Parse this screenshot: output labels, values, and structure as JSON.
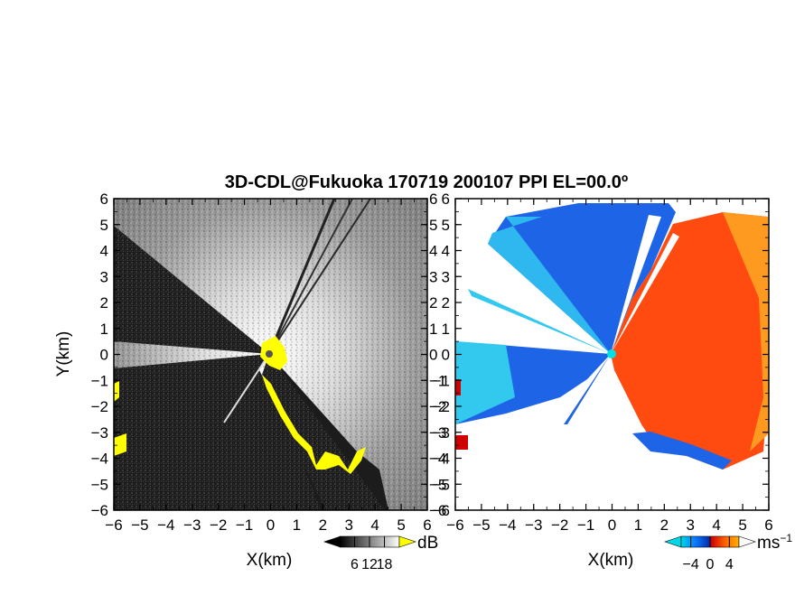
{
  "chart_data": [
    {
      "type": "heatmap",
      "panel": "reflectivity",
      "title": "3D-CDL@Fukuoka 170719 200107 PPI EL=00.0º",
      "xlabel": "X(km)",
      "ylabel": "Y(km)",
      "xlim": [
        -6,
        6
      ],
      "ylim": [
        -6,
        6
      ],
      "xticks": [
        "−6",
        "−5",
        "−4",
        "−3",
        "−2",
        "−1",
        "0",
        "1",
        "2",
        "3",
        "4",
        "5",
        "6"
      ],
      "yticks": [
        "−6",
        "−5",
        "−4",
        "−3",
        "−2",
        "−1",
        "0",
        "1",
        "2",
        "3",
        "4",
        "5",
        "6"
      ],
      "colorbar": {
        "unit": "dB",
        "ticks": [
          "6",
          "12",
          "18"
        ],
        "range": [
          0,
          24
        ],
        "colors": [
          "#000000",
          "#ffffff"
        ],
        "overflow_color": "#ffff00"
      },
      "blocked_sectors_deg": [
        [
          195,
          165
        ],
        [
          168,
          160
        ],
        [
          152,
          148
        ],
        [
          230,
          225
        ],
        [
          236,
          234
        ]
      ],
      "clutter_color": "#ffff00"
    },
    {
      "type": "heatmap",
      "panel": "doppler_velocity",
      "xlabel": "X(km)",
      "xlim": [
        -6,
        6
      ],
      "ylim": [
        -6,
        6
      ],
      "xticks": [
        "−6",
        "−5",
        "−4",
        "−3",
        "−2",
        "−1",
        "0",
        "1",
        "2",
        "3",
        "4",
        "5",
        "6"
      ],
      "yticks": [
        "−6",
        "−5",
        "−4",
        "−3",
        "−2",
        "−1",
        "0",
        "1",
        "2",
        "3",
        "4",
        "5",
        "6"
      ],
      "colorbar": {
        "unit": "ms",
        "unit_exponent": "−1",
        "ticks": [
          "−4",
          "0",
          "4"
        ],
        "range": [
          -6,
          6
        ],
        "colors": [
          "#00d8e8",
          "#0060ff",
          "#0030b0",
          "#e00000",
          "#ff6000",
          "#ffb000"
        ]
      },
      "regions": [
        {
          "name": "approaching",
          "color": "#1e64e6"
        },
        {
          "name": "receding",
          "color": "#ff4a10"
        }
      ]
    }
  ],
  "title": "3D-CDL@Fukuoka 170719 200107 PPI EL=00.0º",
  "left_xlabel": "X(km)",
  "right_xlabel": "X(km)",
  "ylabel": "Y(km)",
  "cb1_unit": "dB",
  "cb2_unit": "ms",
  "cb2_unit_exp": "−1"
}
